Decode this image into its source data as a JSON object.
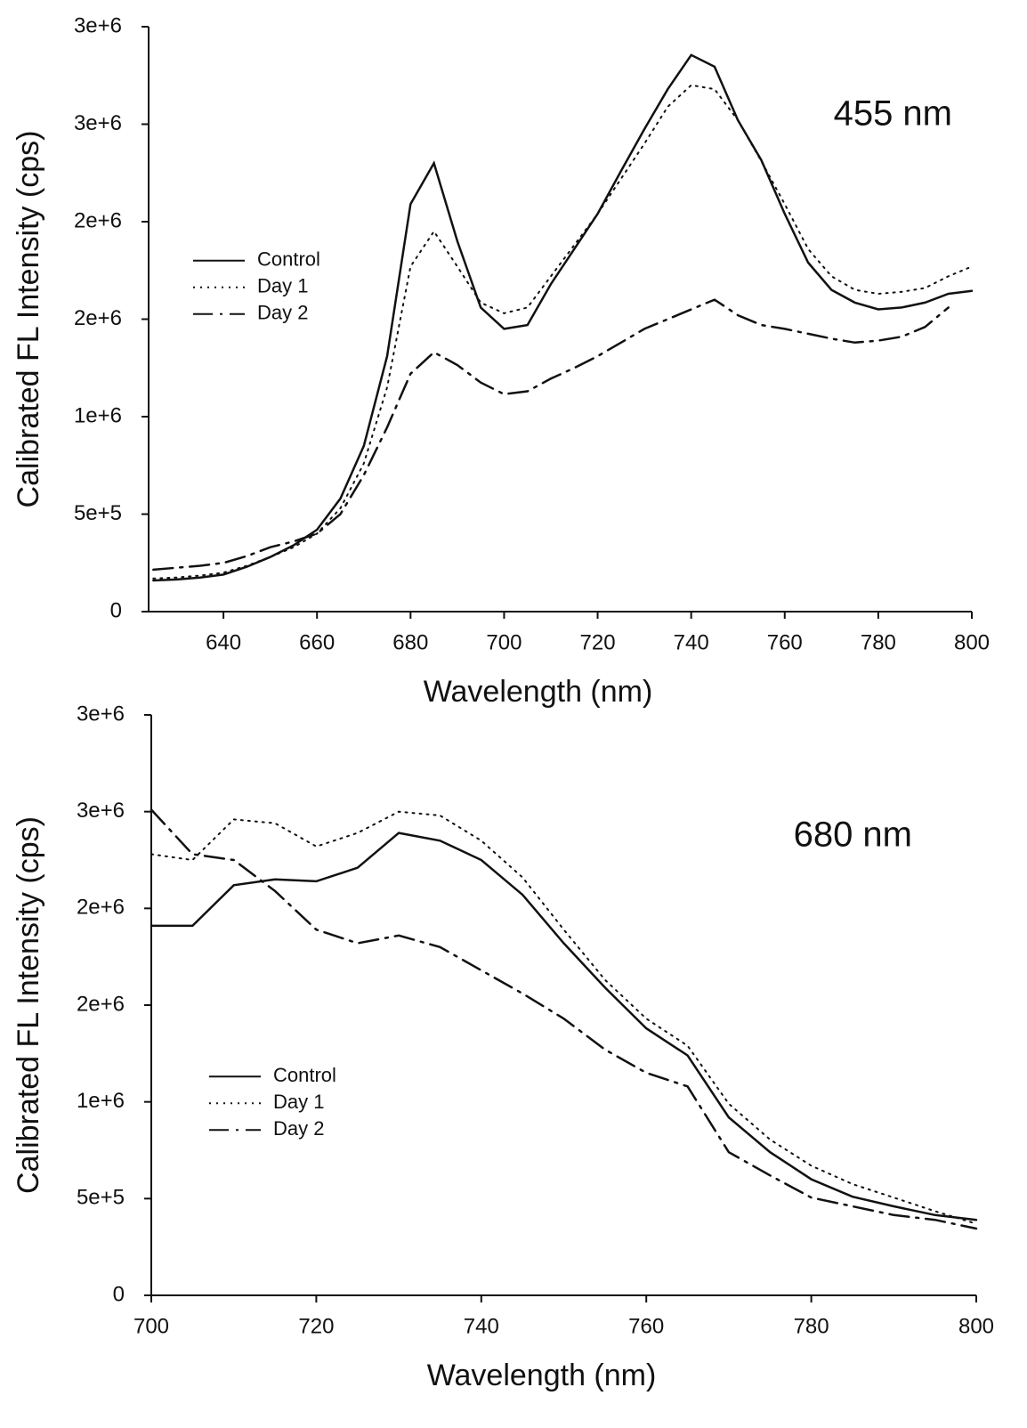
{
  "chart_data": [
    {
      "type": "line",
      "annotation": "455 nm",
      "xlabel": "Wavelength (nm)",
      "ylabel": "Calibrated FL Intensity (cps)",
      "x": [
        625,
        630,
        635,
        640,
        645,
        650,
        655,
        660,
        665,
        670,
        675,
        680,
        685,
        690,
        695,
        700,
        705,
        710,
        715,
        720,
        725,
        730,
        735,
        740,
        745,
        750,
        755,
        760,
        765,
        770,
        775,
        780,
        785,
        790,
        795,
        800
      ],
      "series": [
        {
          "name": "Control",
          "color": "#111111",
          "style": "solid",
          "values": [
            160000,
            165000,
            175000,
            190000,
            230000,
            280000,
            340000,
            420000,
            580000,
            850000,
            1310000,
            2090000,
            2300000,
            1900000,
            1560000,
            1450000,
            1470000,
            1680000,
            1860000,
            2040000,
            2260000,
            2475000,
            2680000,
            2855000,
            2795000,
            2520000,
            2315000,
            2040000,
            1790000,
            1650000,
            1585000,
            1550000,
            1560000,
            1585000,
            1630000,
            1645000
          ]
        },
        {
          "name": "Day 1",
          "color": "#111111",
          "style": "dotted",
          "values": [
            170000,
            175000,
            185000,
            200000,
            235000,
            280000,
            330000,
            400000,
            530000,
            760000,
            1150000,
            1770000,
            1950000,
            1770000,
            1585000,
            1530000,
            1560000,
            1720000,
            1880000,
            2040000,
            2220000,
            2400000,
            2590000,
            2700000,
            2680000,
            2520000,
            2310000,
            2090000,
            1860000,
            1720000,
            1650000,
            1630000,
            1640000,
            1660000,
            1720000,
            1770000
          ]
        },
        {
          "name": "Day 2",
          "color": "#111111",
          "style": "dashdot",
          "values": [
            215000,
            225000,
            235000,
            250000,
            285000,
            330000,
            360000,
            400000,
            500000,
            700000,
            945000,
            1220000,
            1330000,
            1265000,
            1175000,
            1115000,
            1130000,
            1195000,
            1250000,
            1310000,
            1380000,
            1450000,
            1500000,
            1550000,
            1600000,
            1520000,
            1470000,
            1450000,
            1425000,
            1400000,
            1380000,
            1390000,
            1410000,
            1460000,
            1560000,
            null
          ]
        }
      ],
      "xlim": [
        624,
        800
      ],
      "xticks": [
        640,
        660,
        680,
        700,
        720,
        740,
        760,
        780,
        800
      ],
      "ylim": [
        0,
        3000000
      ],
      "yticks": [
        0,
        {
          "value": 500000,
          "label": "5e+5"
        },
        {
          "value": 1000000,
          "label": "1e+6"
        },
        {
          "value": 1500000,
          "label": "2e+6"
        },
        {
          "value": 2000000,
          "label": "2e+6"
        },
        {
          "value": 2500000,
          "label": "3e+6"
        },
        {
          "value": 3000000,
          "label": "3e+6"
        }
      ],
      "grid": false,
      "legend": "center-left"
    },
    {
      "type": "line",
      "annotation": "680 nm",
      "xlabel": "Wavelength (nm)",
      "ylabel": "Calibrated FL Intensity (cps)",
      "x": [
        700,
        705,
        710,
        715,
        720,
        725,
        730,
        735,
        740,
        745,
        750,
        755,
        760,
        765,
        770,
        775,
        780,
        785,
        790,
        795,
        800
      ],
      "series": [
        {
          "name": "Control",
          "color": "#111111",
          "style": "solid",
          "values": [
            1910000,
            1910000,
            2120000,
            2150000,
            2140000,
            2210000,
            2390000,
            2350000,
            2250000,
            2070000,
            1820000,
            1590000,
            1380000,
            1240000,
            920000,
            740000,
            600000,
            510000,
            460000,
            415000,
            390000
          ]
        },
        {
          "name": "Day 1",
          "color": "#111111",
          "style": "dotted",
          "values": [
            2280000,
            2250000,
            2460000,
            2440000,
            2320000,
            2390000,
            2500000,
            2480000,
            2350000,
            2160000,
            1890000,
            1630000,
            1430000,
            1290000,
            990000,
            805000,
            670000,
            575000,
            505000,
            435000,
            370000
          ]
        },
        {
          "name": "Day 2",
          "color": "#111111",
          "style": "dashdot",
          "values": [
            2510000,
            2280000,
            2250000,
            2090000,
            1890000,
            1820000,
            1860000,
            1800000,
            1680000,
            1560000,
            1430000,
            1270000,
            1150000,
            1080000,
            740000,
            620000,
            505000,
            460000,
            415000,
            390000,
            345000
          ]
        }
      ],
      "xlim": [
        700,
        800
      ],
      "xticks": [
        700,
        720,
        740,
        760,
        780,
        800
      ],
      "ylim": [
        0,
        3000000
      ],
      "yticks": [
        0,
        {
          "value": 500000,
          "label": "5e+5"
        },
        {
          "value": 1000000,
          "label": "1e+6"
        },
        {
          "value": 1500000,
          "label": "2e+6"
        },
        {
          "value": 2000000,
          "label": "2e+6"
        },
        {
          "value": 2500000,
          "label": "3e+6"
        },
        {
          "value": 3000000,
          "label": "3e+6"
        }
      ],
      "grid": false,
      "legend": "lower-left"
    }
  ]
}
